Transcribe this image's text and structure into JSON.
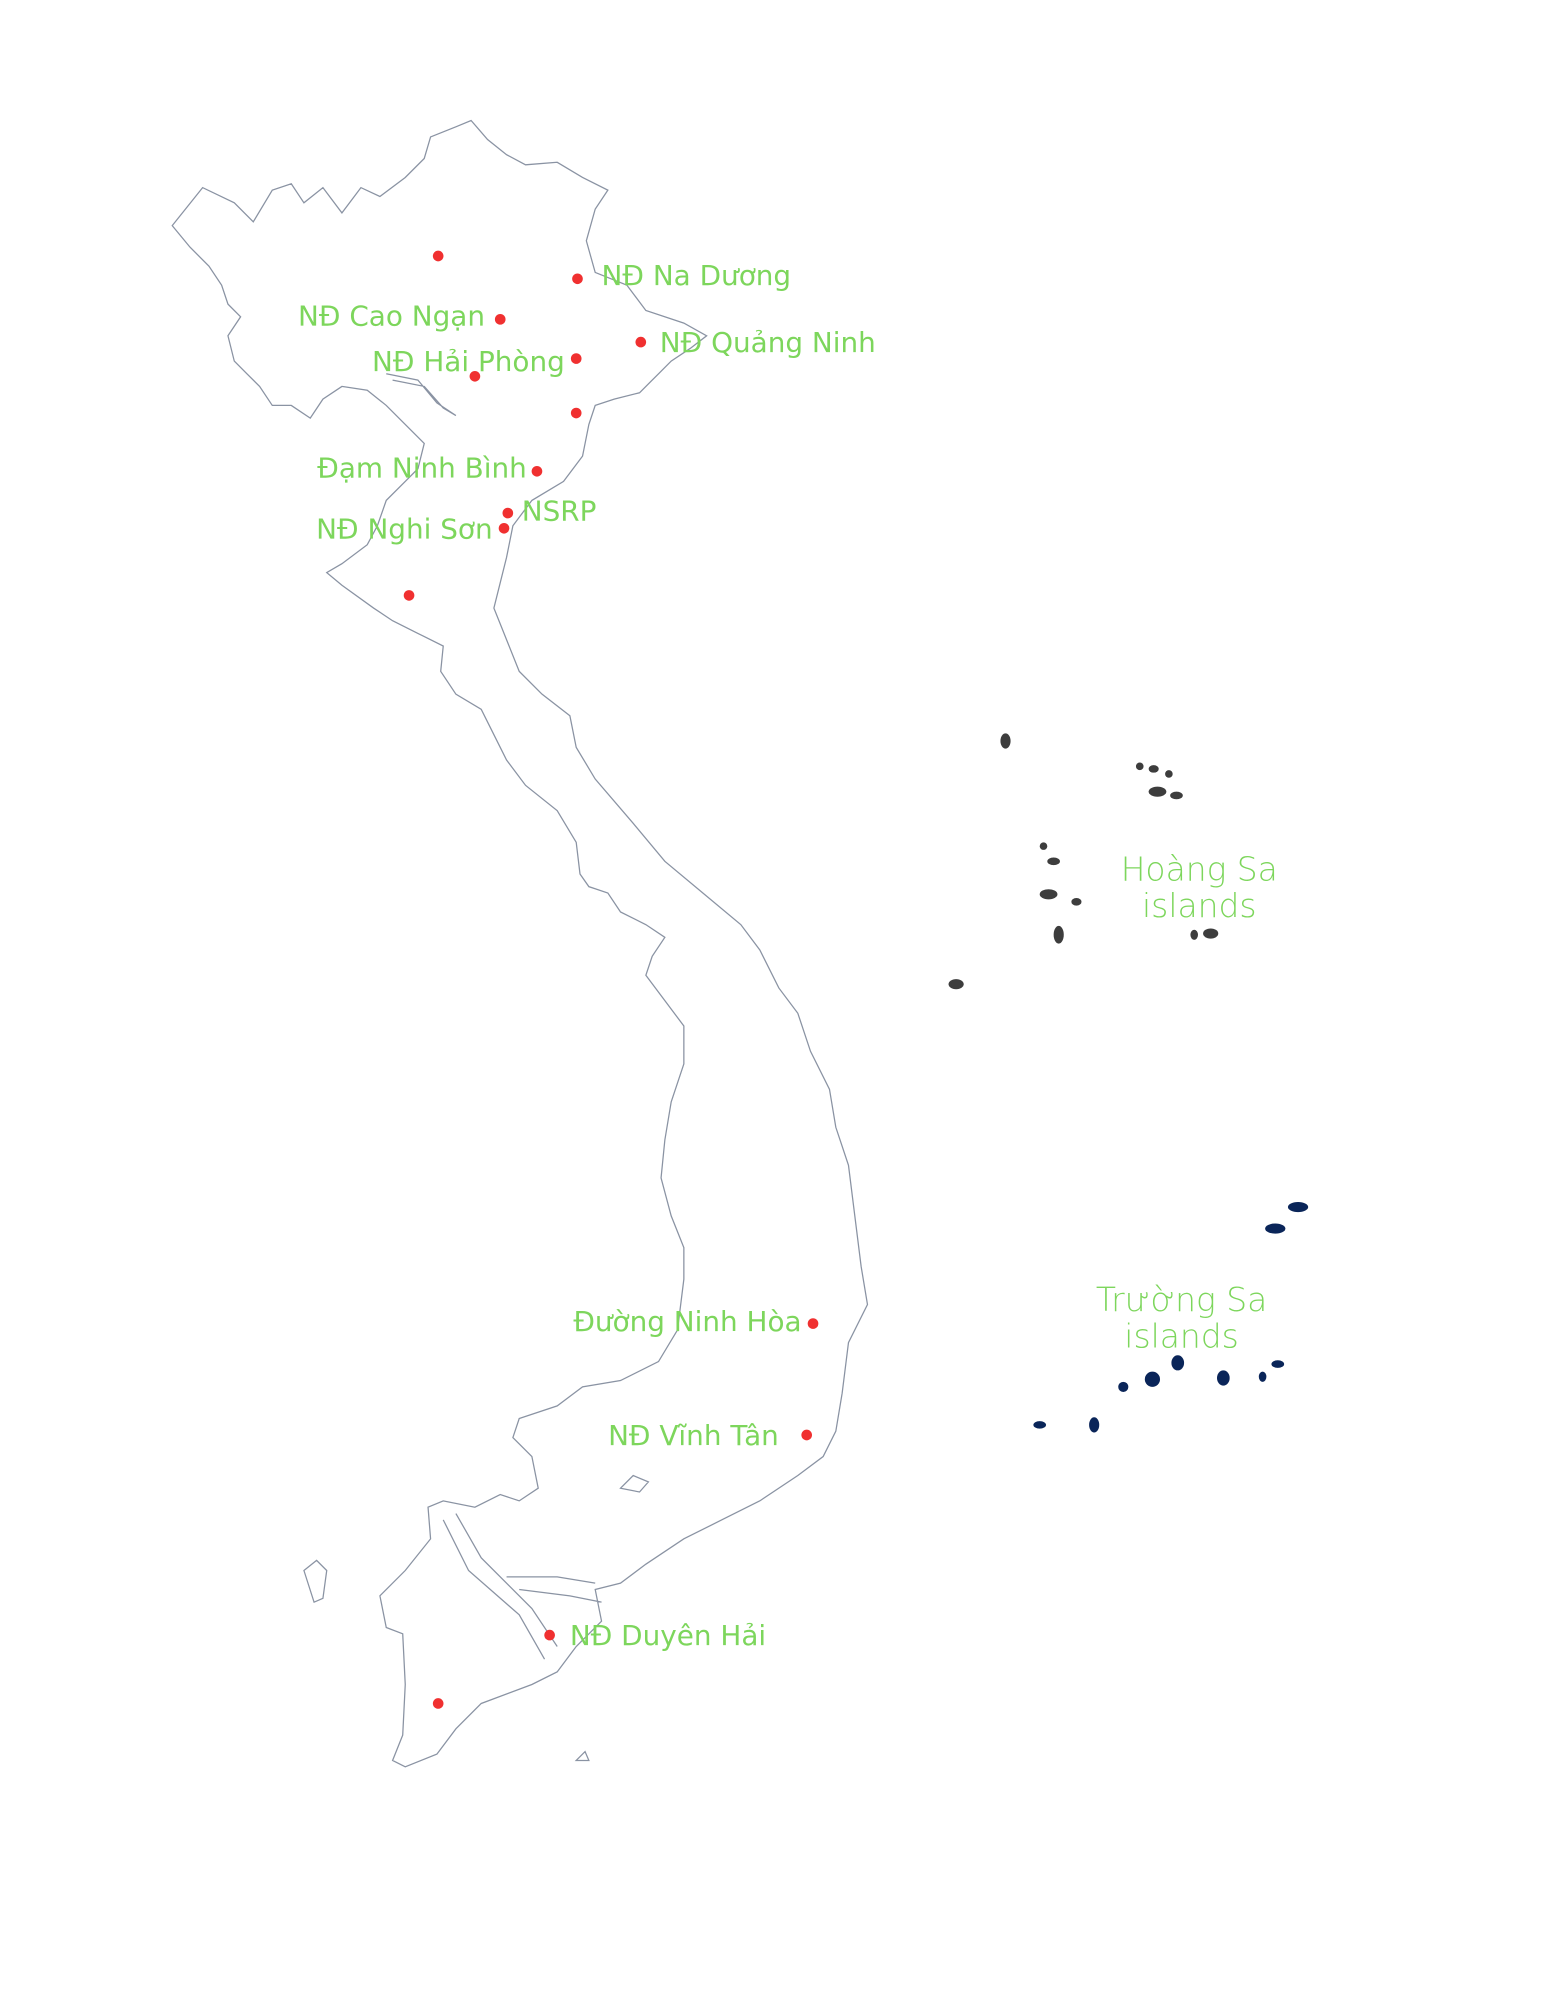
{
  "map": {
    "colors": {
      "background": "#ffffff",
      "land_outline": "#8a93a3",
      "marker": "#f03030",
      "label": "#7dd65c",
      "hoang_sa_islands": "#3d3d3d",
      "truong_sa_islands": "#0a2559"
    },
    "markers": [
      {
        "label": ""
      },
      {
        "label": "NĐ Na Dương"
      },
      {
        "label": "NĐ Cao Ngạn"
      },
      {
        "label": "NĐ Hải Phòng"
      },
      {
        "label": ""
      },
      {
        "label": "NĐ Quảng Ninh"
      },
      {
        "label": ""
      },
      {
        "label": "Đạm Ninh Bình"
      },
      {
        "label": "NSRP"
      },
      {
        "label": "NĐ Nghi Sơn"
      },
      {
        "label": ""
      },
      {
        "label": "Đường Ninh Hòa"
      },
      {
        "label": "NĐ Vĩnh Tân"
      },
      {
        "label": "NĐ Duyên Hải"
      },
      {
        "label": ""
      }
    ],
    "island_groups": [
      {
        "line1": "Hoàng Sa",
        "line2": "islands"
      },
      {
        "line1": "Trường Sa",
        "line2": "islands"
      }
    ]
  }
}
